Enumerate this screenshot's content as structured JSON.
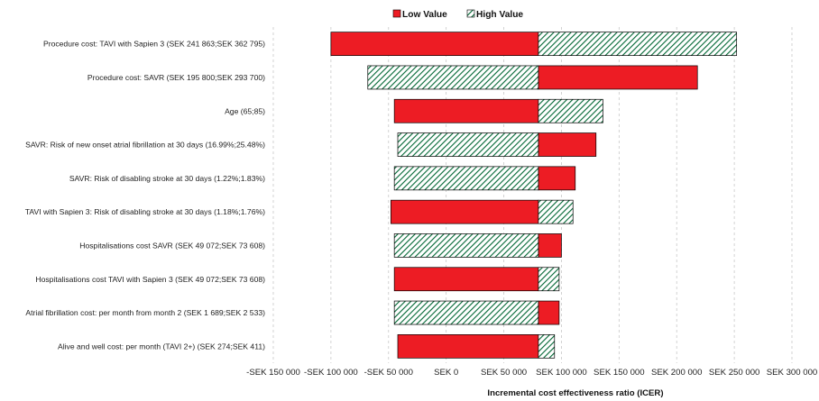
{
  "chart_data": {
    "type": "tornado",
    "xlabel": "Incremental cost effectiveness ratio (ICER)",
    "xlim": [
      -150000,
      300000
    ],
    "x_ticks": [
      -150000,
      -100000,
      -50000,
      0,
      50000,
      100000,
      150000,
      200000,
      250000,
      300000
    ],
    "x_tick_labels": [
      "-SEK 150 000",
      "-SEK 100 000",
      "-SEK 50 000",
      "SEK  0",
      "SEK 50 000",
      "SEK 100 000",
      "SEK 150 000",
      "SEK 200 000",
      "SEK 250 000",
      "SEK 300 000"
    ],
    "base_value": 80000,
    "grid": "vertical dashed",
    "legend": {
      "placement": "top-center",
      "entries": [
        {
          "name": "Low Value",
          "color": "#ed1c24",
          "pattern": "solid"
        },
        {
          "name": "High Value",
          "color": "#006633",
          "pattern": "diagonal-hatch"
        }
      ]
    },
    "series": [
      {
        "name": "Low Value",
        "values": [
          -100000,
          218000,
          -45000,
          130000,
          112000,
          -48000,
          100000,
          -45000,
          98000,
          -42000
        ]
      },
      {
        "name": "High Value",
        "values": [
          252000,
          -68000,
          136000,
          -42000,
          -45000,
          110000,
          -45000,
          98000,
          -45000,
          94000
        ]
      }
    ],
    "categories": [
      "Procedure cost: TAVI with Sapien 3 (SEK 241 863;SEK 362 795)",
      "Procedure cost: SAVR (SEK 195 800;SEK 293 700)",
      "Age (65;85)",
      "SAVR: Risk of new onset atrial fibrillation at 30 days (16.99%;25.48%)",
      "SAVR: Risk of disabling stroke at 30 days (1.22%;1.83%)",
      "TAVI with Sapien 3: Risk of disabling stroke at 30 days (1.18%;1.76%)",
      "Hospitalisations cost SAVR (SEK 49 072;SEK 73 608)",
      "Hospitalisations cost TAVI with Sapien 3 (SEK 49 072;SEK 73 608)",
      "Atrial fibrillation cost: per month from month 2 (SEK 1 689;SEK 2 533)",
      "Alive and well cost: per month (TAVI 2+) (SEK  274;SEK  411)"
    ]
  }
}
